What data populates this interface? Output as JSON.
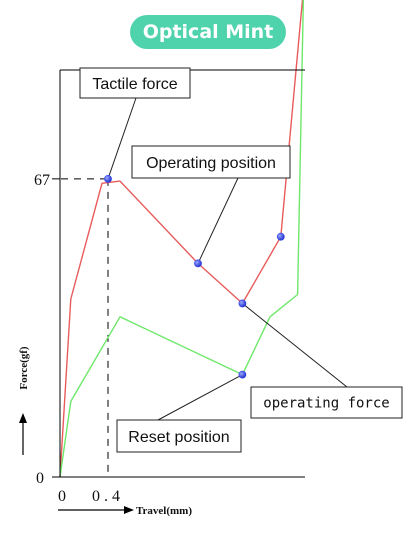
{
  "header": {
    "title": "Optical Mint"
  },
  "chart_data": {
    "type": "line",
    "xlabel": "Travel(mm)",
    "ylabel": "Force(gf)",
    "x_ticks": [
      "0",
      "0.4"
    ],
    "y_ticks": [
      "0",
      "67"
    ],
    "marker_line": {
      "x": 0.4,
      "y": 67
    },
    "series": [
      {
        "color": "#e85b5b",
        "points": [
          [
            0.0,
            0
          ],
          [
            0.09,
            40
          ],
          [
            0.35,
            66
          ],
          [
            0.5,
            66.5
          ],
          [
            1.15,
            48
          ],
          [
            1.52,
            39
          ],
          [
            1.84,
            54
          ],
          [
            2.03,
            110
          ]
        ]
      },
      {
        "color": "#6ee86a",
        "points": [
          [
            0.0,
            0
          ],
          [
            0.09,
            17
          ],
          [
            0.5,
            36
          ],
          [
            1.52,
            23
          ],
          [
            1.75,
            36
          ],
          [
            1.98,
            41
          ],
          [
            2.03,
            110
          ]
        ]
      }
    ],
    "markers": [
      {
        "x": 0.4,
        "y": 67,
        "color": "#3344ee"
      },
      {
        "x": 1.15,
        "y": 48,
        "color": "#3344ee"
      },
      {
        "x": 1.52,
        "y": 39,
        "color": "#3344ee"
      },
      {
        "x": 1.84,
        "y": 54,
        "color": "#3344ee"
      },
      {
        "x": 1.52,
        "y": 23,
        "color": "#3344ee"
      }
    ],
    "annotations": [
      {
        "text": "Tactile force",
        "target": {
          "x": 0.4,
          "y": 67
        }
      },
      {
        "text": "Operating position",
        "target": {
          "x": 1.15,
          "y": 48
        }
      },
      {
        "text": "operating force",
        "target": {
          "x": 1.52,
          "y": 39
        }
      },
      {
        "text": "Reset position",
        "target": {
          "x": 1.52,
          "y": 23
        }
      }
    ]
  }
}
